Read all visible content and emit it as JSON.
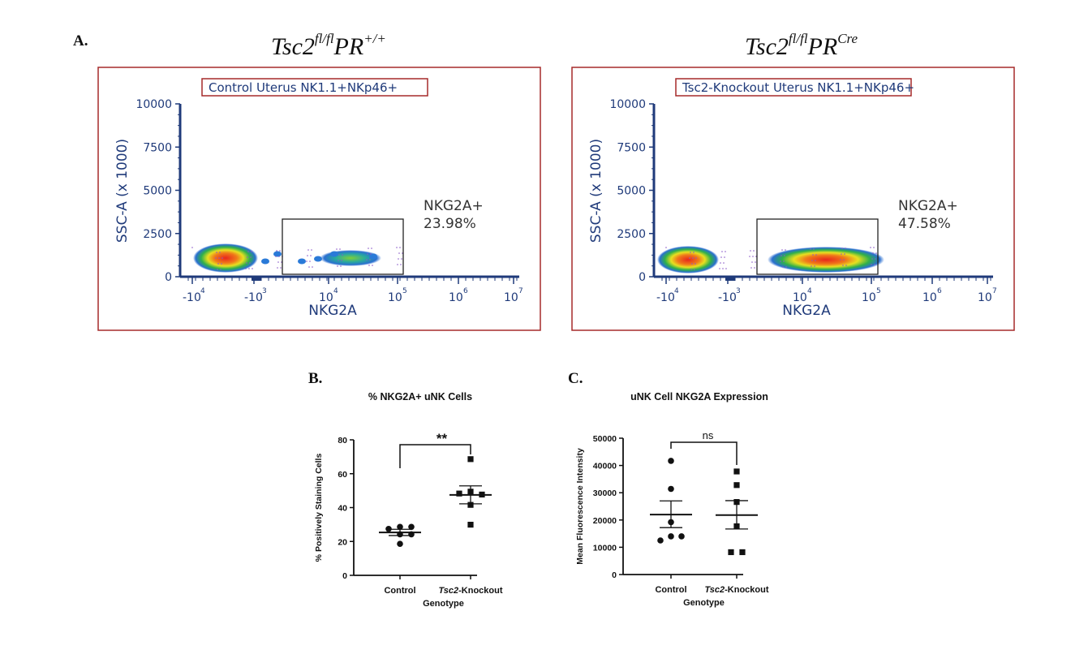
{
  "panel_labels": {
    "a": "A.",
    "b": "B.",
    "c": "C."
  },
  "genotypes": [
    {
      "base": "Tsc2",
      "sup1": "fl/fl",
      "mid": "PR",
      "sup2": "+/+"
    },
    {
      "base": "Tsc2",
      "sup1": "fl/fl",
      "mid": "PR",
      "sup2": "Cre"
    }
  ],
  "colors": {
    "frame": "#a52a2a",
    "axis": "#1f3a7a",
    "text": "#333"
  },
  "chart_data": [
    {
      "type": "scatter",
      "subtype": "flow-cytometry-density",
      "title": "Control Uterus NK1.1+NKp46+",
      "xlabel": "NKG2A",
      "ylabel": "SSC-A (x 1000)",
      "yticks": [
        "0",
        "2500",
        "5000",
        "7500",
        "10000"
      ],
      "xticks": [
        {
          "b": "-10",
          "e": "4"
        },
        {
          "b": "-10",
          "e": "3"
        },
        {
          "b": "10",
          "e": "4"
        },
        {
          "b": "10",
          "e": "5"
        },
        {
          "b": "10",
          "e": "6"
        },
        {
          "b": "10",
          "e": "7"
        }
      ],
      "gate": {
        "name": "NKG2A+",
        "percent": "23.98%"
      }
    },
    {
      "type": "scatter",
      "subtype": "flow-cytometry-density",
      "title": "Tsc2-Knockout Uterus NK1.1+NKp46+",
      "xlabel": "NKG2A",
      "ylabel": "SSC-A (x 1000)",
      "yticks": [
        "0",
        "2500",
        "5000",
        "7500",
        "10000"
      ],
      "xticks": [
        {
          "b": "-10",
          "e": "4"
        },
        {
          "b": "-10",
          "e": "3"
        },
        {
          "b": "10",
          "e": "4"
        },
        {
          "b": "10",
          "e": "5"
        },
        {
          "b": "10",
          "e": "6"
        },
        {
          "b": "10",
          "e": "7"
        }
      ],
      "gate": {
        "name": "NKG2A+",
        "percent": "47.58%"
      }
    },
    {
      "type": "scatter",
      "title": "% NKG2A+ uNK Cells",
      "xlabel": "Genotype",
      "ylabel": "% Positively Staining Cells",
      "ylim": [
        0,
        80
      ],
      "yticks": [
        0,
        20,
        40,
        60,
        80
      ],
      "categories": [
        "Control",
        "Tsc2-Knockout"
      ],
      "category_italic_prefix": [
        "",
        "Tsc2"
      ],
      "significance": "**",
      "series": [
        {
          "category": "Control",
          "marker": "circle",
          "values": [
            27.4,
            28.6,
            28.6,
            24.2,
            24.2,
            18.6
          ],
          "mean": 25.3,
          "sem": [
            23.5,
            27.2
          ]
        },
        {
          "category": "Tsc2-Knockout",
          "marker": "square",
          "values": [
            68.6,
            48.3,
            49.4,
            47.7,
            41.6,
            29.9
          ],
          "mean": 47.5,
          "sem": [
            42.2,
            52.8
          ]
        }
      ]
    },
    {
      "type": "scatter",
      "title": "uNK Cell NKG2A Expression",
      "xlabel": "Genotype",
      "ylabel": "Mean Fluorescence Intensity",
      "ylim": [
        0,
        50000
      ],
      "yticks": [
        0,
        10000,
        20000,
        30000,
        40000,
        50000
      ],
      "categories": [
        "Control",
        "Tsc2-Knockout"
      ],
      "category_italic_prefix": [
        "",
        "Tsc2"
      ],
      "significance": "ns",
      "series": [
        {
          "category": "Control",
          "marker": "circle",
          "values": [
            41700,
            31400,
            19200,
            14000,
            14000,
            12500
          ],
          "mean": 22000,
          "sem": [
            17200,
            27000
          ]
        },
        {
          "category": "Tsc2-Knockout",
          "marker": "square",
          "values": [
            37800,
            32800,
            26600,
            17700,
            8200,
            8200
          ],
          "mean": 21800,
          "sem": [
            16700,
            27100
          ]
        }
      ]
    }
  ]
}
